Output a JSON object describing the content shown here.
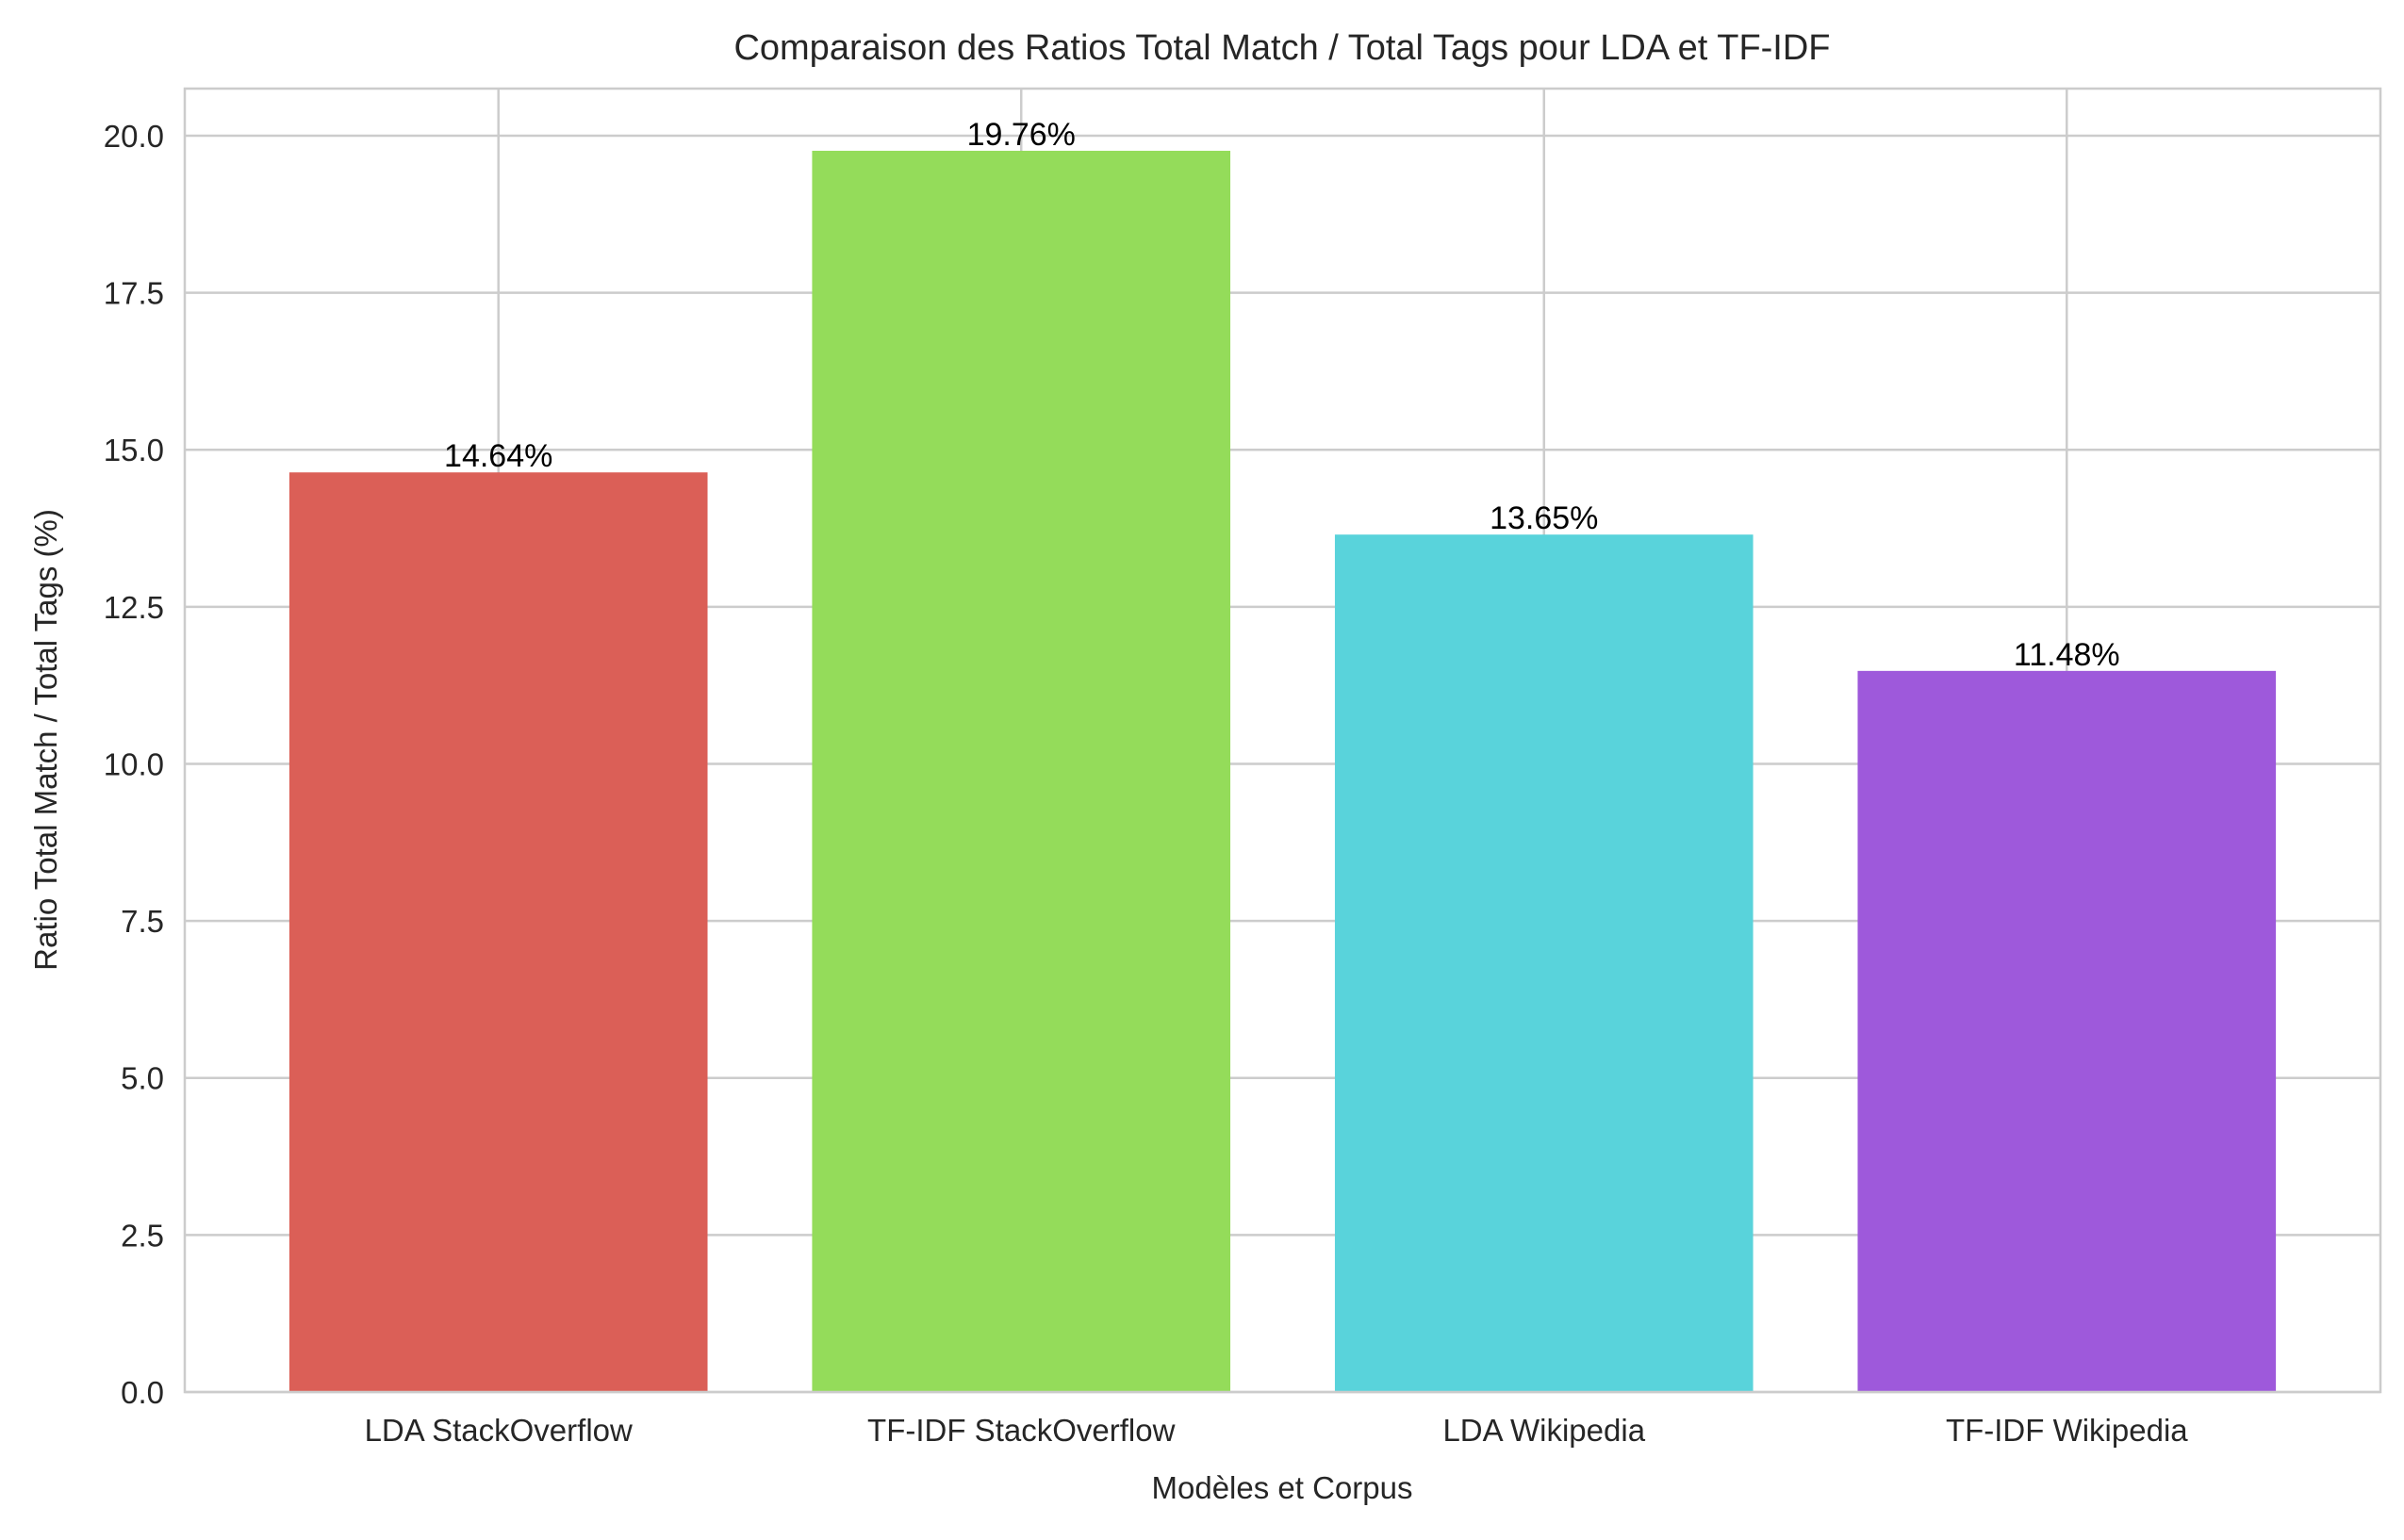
{
  "chart_data": {
    "type": "bar",
    "title": "Comparaison des Ratios Total Match / Total Tags pour LDA et TF-IDF",
    "xlabel": "Modèles et Corpus",
    "ylabel": "Ratio Total Match / Total Tags (%)",
    "categories": [
      "LDA StackOverflow",
      "TF-IDF StackOverflow",
      "LDA Wikipedia",
      "TF-IDF Wikipedia"
    ],
    "values": [
      14.64,
      19.76,
      13.65,
      11.48
    ],
    "data_labels": [
      "14.64%",
      "19.76%",
      "13.65%",
      "11.48%"
    ],
    "colors": [
      "#db5f57",
      "#94dc5a",
      "#59d3db",
      "#9e59db"
    ],
    "ylim": [
      0,
      20.75
    ],
    "yticks": [
      0.0,
      2.5,
      5.0,
      7.5,
      10.0,
      12.5,
      15.0,
      17.5,
      20.0
    ],
    "ytick_labels": [
      "0.0",
      "2.5",
      "5.0",
      "7.5",
      "10.0",
      "12.5",
      "15.0",
      "17.5",
      "20.0"
    ],
    "grid": true,
    "legend": "none"
  }
}
